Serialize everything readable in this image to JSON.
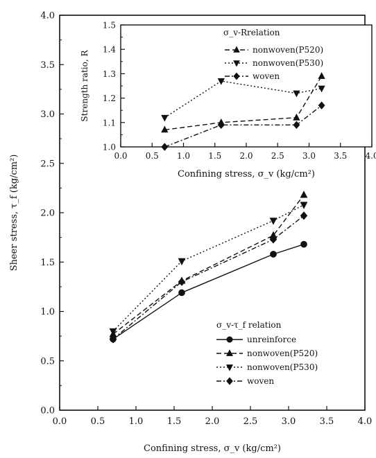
{
  "chart_data": [
    {
      "type": "line",
      "role": "main",
      "title": "",
      "xlabel": "Confining stress, σ_v (kg/cm²)",
      "ylabel": "Sheer stress, τ_f (kg/cm²)",
      "xlim": [
        0.0,
        4.0
      ],
      "ylim": [
        0.0,
        4.0
      ],
      "xticks": [
        "0.0",
        "0.5",
        "1.0",
        "1.5",
        "2.0",
        "2.5",
        "3.0",
        "3.5",
        "4.0"
      ],
      "yticks": [
        "0.0",
        "0.5",
        "1.0",
        "1.5",
        "2.0",
        "2.5",
        "3.0",
        "3.5",
        "4.0"
      ],
      "legend_title": "σ_v-τ_f relation",
      "legend_position": "lower-right",
      "grid": false,
      "series": [
        {
          "name": "unreinforce",
          "marker": "circle",
          "dash": "solid",
          "x": [
            0.7,
            1.6,
            2.8,
            3.2
          ],
          "y": [
            0.72,
            1.19,
            1.58,
            1.68
          ]
        },
        {
          "name": "nonwoven(P520)",
          "marker": "triangle-up",
          "dash": "dashed",
          "x": [
            0.7,
            1.6,
            2.8,
            3.2
          ],
          "y": [
            0.77,
            1.31,
            1.77,
            2.18
          ]
        },
        {
          "name": "nonwoven(P530)",
          "marker": "triangle-down",
          "dash": "dotted",
          "x": [
            0.7,
            1.6,
            2.8,
            3.2
          ],
          "y": [
            0.8,
            1.51,
            1.92,
            2.08
          ]
        },
        {
          "name": "woven",
          "marker": "diamond",
          "dash": "dashdot",
          "x": [
            0.7,
            1.6,
            2.8,
            3.2
          ],
          "y": [
            0.72,
            1.3,
            1.73,
            1.97
          ]
        }
      ]
    },
    {
      "type": "line",
      "role": "inset",
      "title": "",
      "xlabel": "Confining stress, σ_v (kg/cm²)",
      "ylabel": "Strength ratio, R",
      "xlim": [
        0.0,
        4.0
      ],
      "ylim": [
        1.0,
        1.5
      ],
      "xticks": [
        "0.0",
        "0.5",
        "1.0",
        "1.5",
        "2.0",
        "2.5",
        "3.0",
        "3.5",
        "4.0"
      ],
      "yticks": [
        "1.0",
        "1.1",
        "1.2",
        "1.3",
        "1.4",
        "1.5"
      ],
      "legend_title": "σ_v-Rrelation",
      "legend_position": "top-right",
      "grid": false,
      "series": [
        {
          "name": "nonwoven(P520)",
          "marker": "triangle-up",
          "dash": "dashed",
          "x": [
            0.7,
            1.6,
            2.8,
            3.2
          ],
          "y": [
            1.07,
            1.1,
            1.12,
            1.29
          ]
        },
        {
          "name": "nonwoven(P530)",
          "marker": "triangle-down",
          "dash": "dotted",
          "x": [
            0.7,
            1.6,
            2.8,
            3.2
          ],
          "y": [
            1.12,
            1.27,
            1.22,
            1.24
          ]
        },
        {
          "name": "woven",
          "marker": "diamond",
          "dash": "dashdot",
          "x": [
            0.7,
            1.6,
            2.8,
            3.2
          ],
          "y": [
            1.0,
            1.09,
            1.09,
            1.17
          ]
        }
      ]
    }
  ]
}
